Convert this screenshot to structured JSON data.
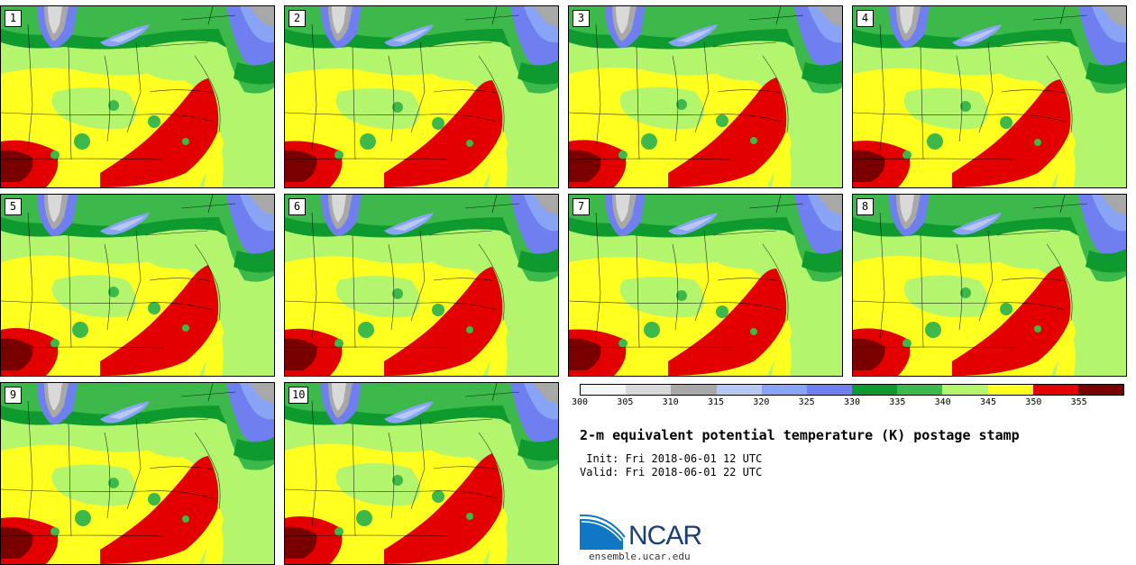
{
  "panels": [
    {
      "label": "1"
    },
    {
      "label": "2"
    },
    {
      "label": "3"
    },
    {
      "label": "4"
    },
    {
      "label": "5"
    },
    {
      "label": "6"
    },
    {
      "label": "7"
    },
    {
      "label": "8"
    },
    {
      "label": "9"
    },
    {
      "label": "10"
    }
  ],
  "colorbar": {
    "colors": [
      "#f5f5f5",
      "#d9d9d9",
      "#a8a8a8",
      "#b8c8f5",
      "#8aa4f5",
      "#6f7ff0",
      "#0e9a2e",
      "#3cb94a",
      "#b4f56e",
      "#ffff20",
      "#e30000",
      "#7a0000"
    ],
    "ticks": [
      "300",
      "305",
      "310",
      "315",
      "320",
      "325",
      "330",
      "335",
      "340",
      "345",
      "350",
      "355"
    ]
  },
  "title": "2-m equivalent potential temperature (K) postage stamp",
  "init": " Init: Fri 2018-06-01 12 UTC",
  "valid": "Valid: Fri 2018-06-01 22 UTC",
  "logo_text": "NCAR",
  "site": "ensemble.ucar.edu"
}
